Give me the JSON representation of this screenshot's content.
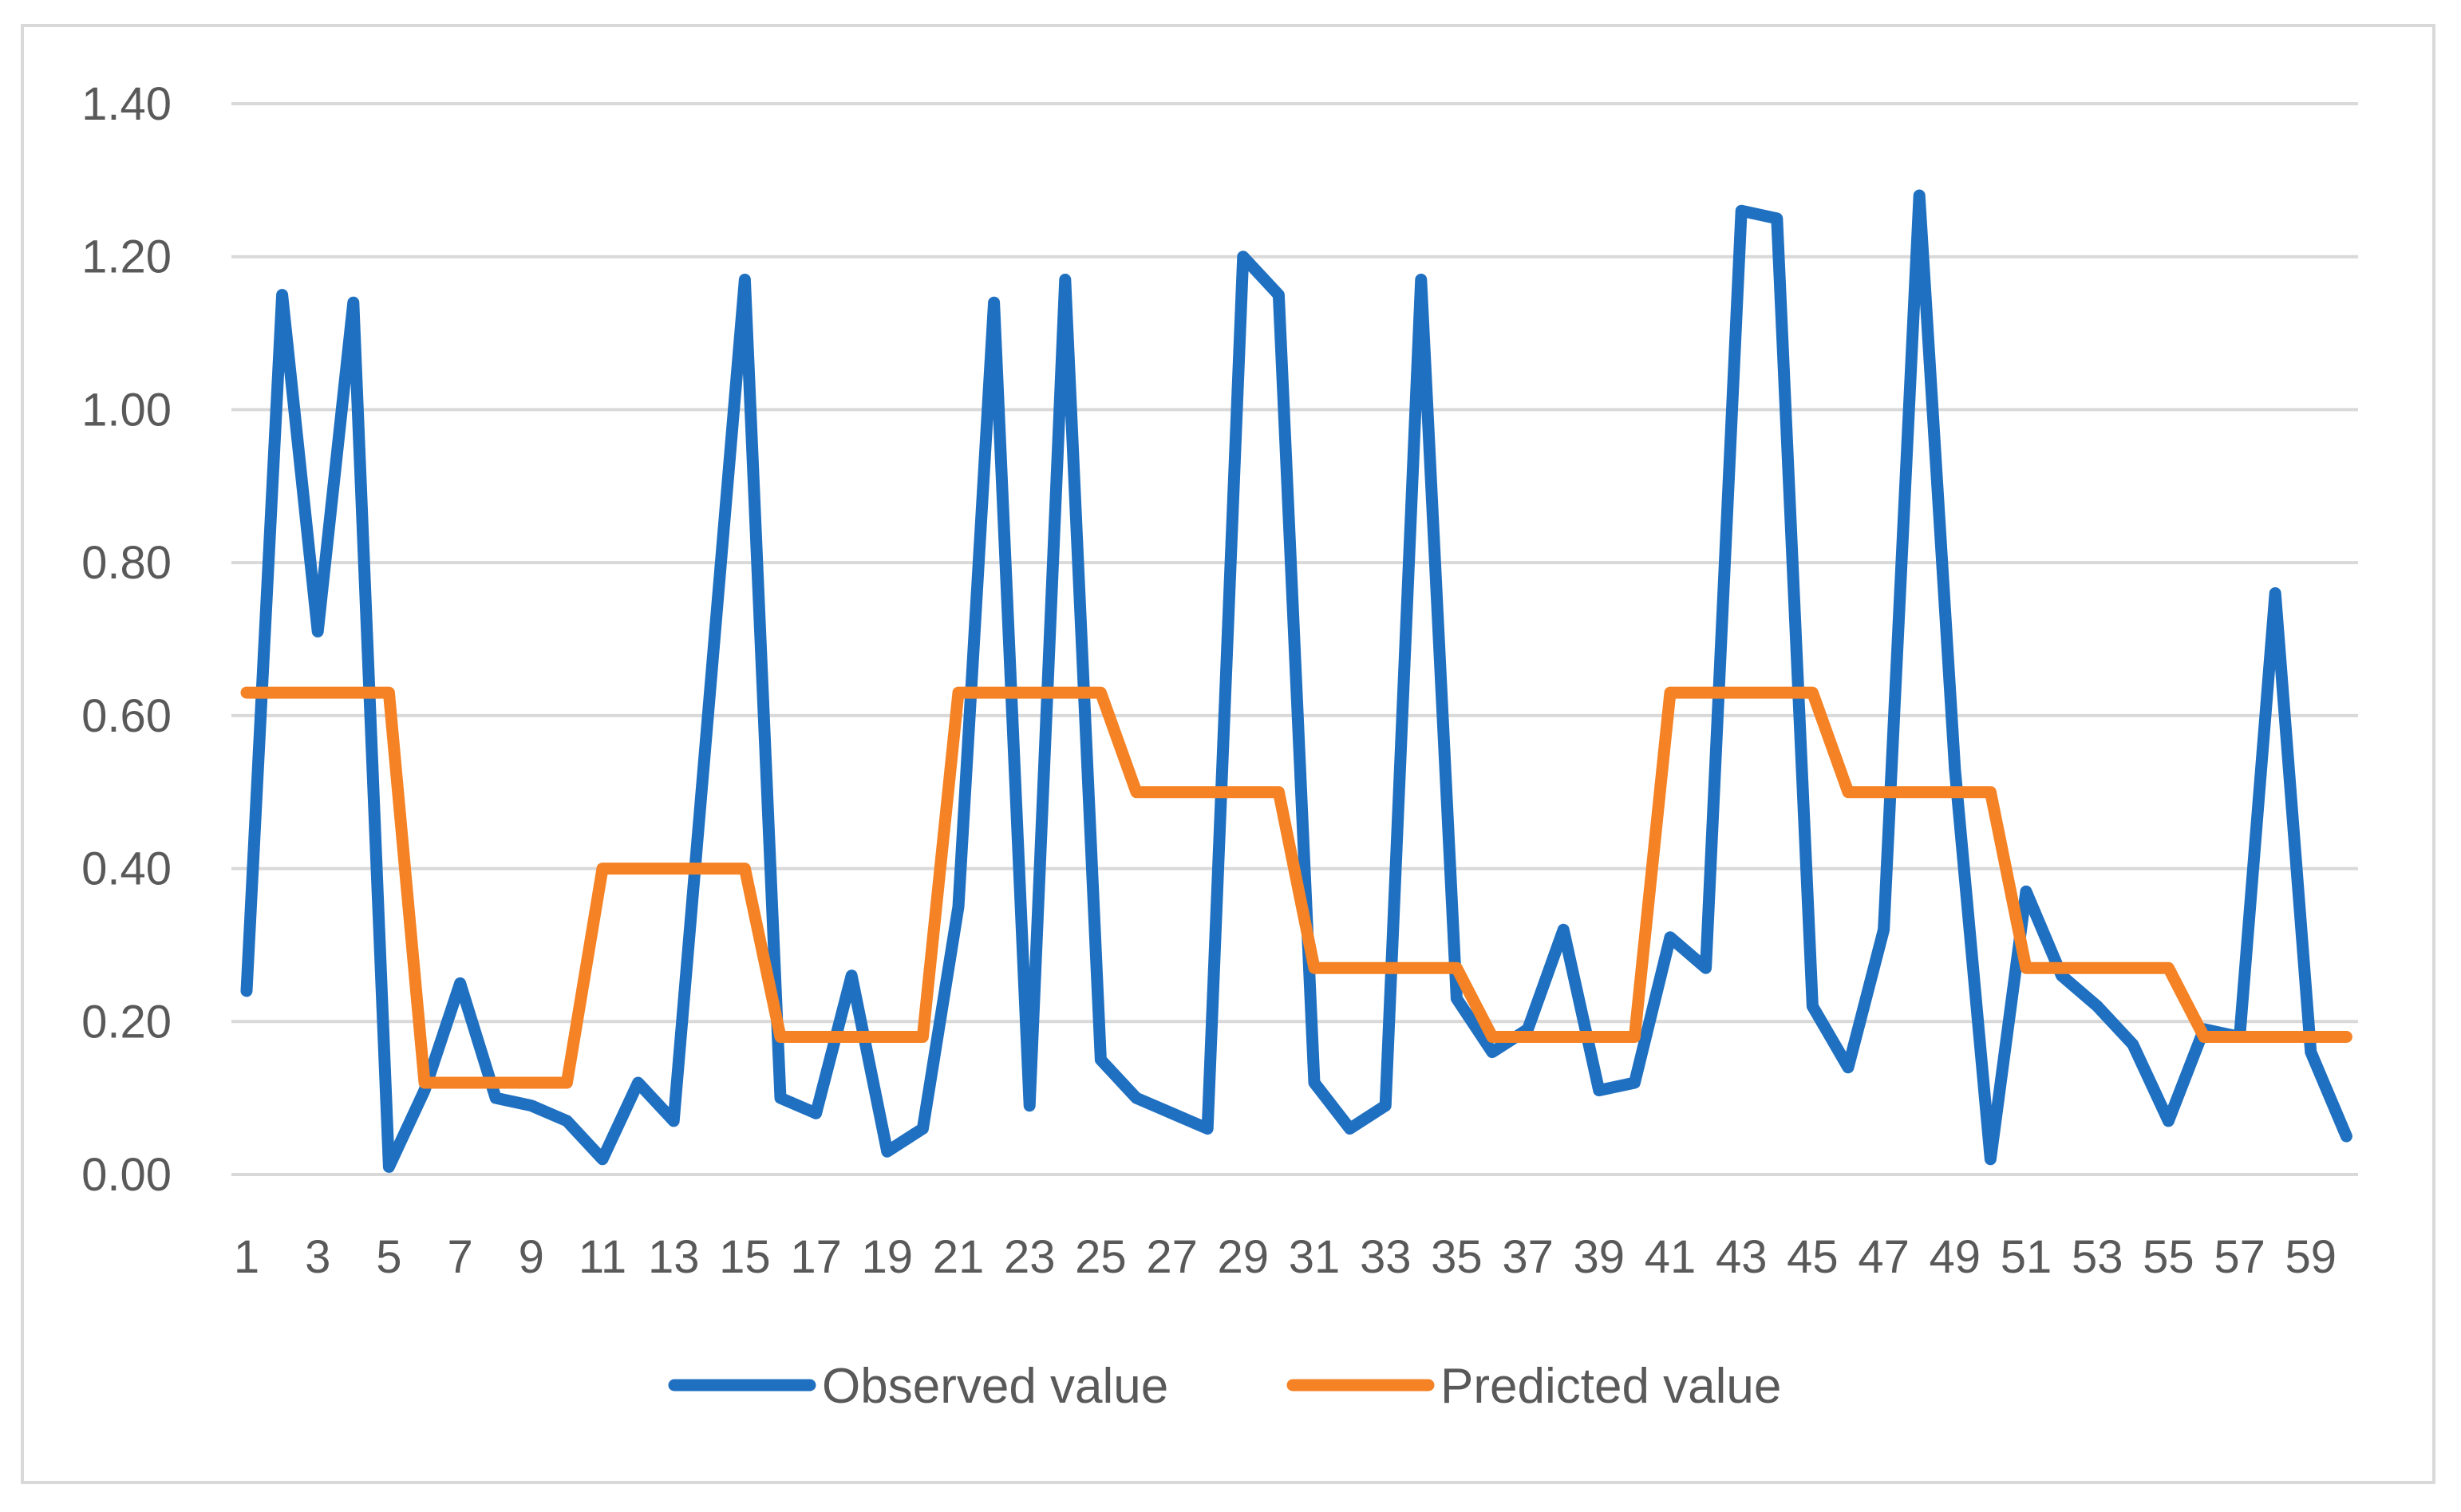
{
  "chart_data": {
    "type": "line",
    "title": "",
    "xlabel": "",
    "ylabel": "",
    "ylim": [
      0,
      1.4
    ],
    "y_ticks": [
      "0.00",
      "0.20",
      "0.40",
      "0.60",
      "0.80",
      "1.00",
      "1.20",
      "1.40"
    ],
    "x_tick_labels": [
      "1",
      "3",
      "5",
      "7",
      "9",
      "11",
      "13",
      "15",
      "17",
      "19",
      "21",
      "23",
      "25",
      "27",
      "29",
      "31",
      "33",
      "35",
      "37",
      "39",
      "41",
      "43",
      "45",
      "47",
      "49",
      "51",
      "53",
      "55",
      "57",
      "59"
    ],
    "grid": "horizontal",
    "legend_position": "bottom",
    "x": [
      1,
      2,
      3,
      4,
      5,
      6,
      7,
      8,
      9,
      10,
      11,
      12,
      13,
      14,
      15,
      16,
      17,
      18,
      19,
      20,
      21,
      22,
      23,
      24,
      25,
      26,
      27,
      28,
      29,
      30,
      31,
      32,
      33,
      34,
      35,
      36,
      37,
      38,
      39,
      40,
      41,
      42,
      43,
      44,
      45,
      46,
      47,
      48,
      49,
      50,
      51,
      52,
      53,
      54,
      55,
      56,
      57,
      58,
      59,
      60
    ],
    "series": [
      {
        "name": "Observed value",
        "color": "#1f70c1",
        "values": [
          0.24,
          1.15,
          0.71,
          1.14,
          0.01,
          0.11,
          0.25,
          0.1,
          0.09,
          0.07,
          0.02,
          0.12,
          0.07,
          0.62,
          1.17,
          0.1,
          0.08,
          0.26,
          0.03,
          0.06,
          0.35,
          1.14,
          0.09,
          1.17,
          0.15,
          0.1,
          0.08,
          0.06,
          1.2,
          1.15,
          0.12,
          0.06,
          0.09,
          1.17,
          0.23,
          0.16,
          0.19,
          0.32,
          0.11,
          0.12,
          0.31,
          0.27,
          1.26,
          1.25,
          0.22,
          0.14,
          0.32,
          1.28,
          0.53,
          0.02,
          0.37,
          0.26,
          0.22,
          0.17,
          0.07,
          0.19,
          0.18,
          0.76,
          0.16,
          0.05
        ]
      },
      {
        "name": "Predicted value",
        "color": "#f58224",
        "values": [
          0.63,
          0.63,
          0.63,
          0.63,
          0.63,
          0.12,
          0.12,
          0.12,
          0.12,
          0.12,
          0.4,
          0.4,
          0.4,
          0.4,
          0.4,
          0.18,
          0.18,
          0.18,
          0.18,
          0.18,
          0.63,
          0.63,
          0.63,
          0.63,
          0.63,
          0.5,
          0.5,
          0.5,
          0.5,
          0.5,
          0.27,
          0.27,
          0.27,
          0.27,
          0.27,
          0.18,
          0.18,
          0.18,
          0.18,
          0.18,
          0.63,
          0.63,
          0.63,
          0.63,
          0.63,
          0.5,
          0.5,
          0.5,
          0.5,
          0.5,
          0.27,
          0.27,
          0.27,
          0.27,
          0.27,
          0.18,
          0.18,
          0.18,
          0.18,
          0.18
        ]
      }
    ]
  }
}
